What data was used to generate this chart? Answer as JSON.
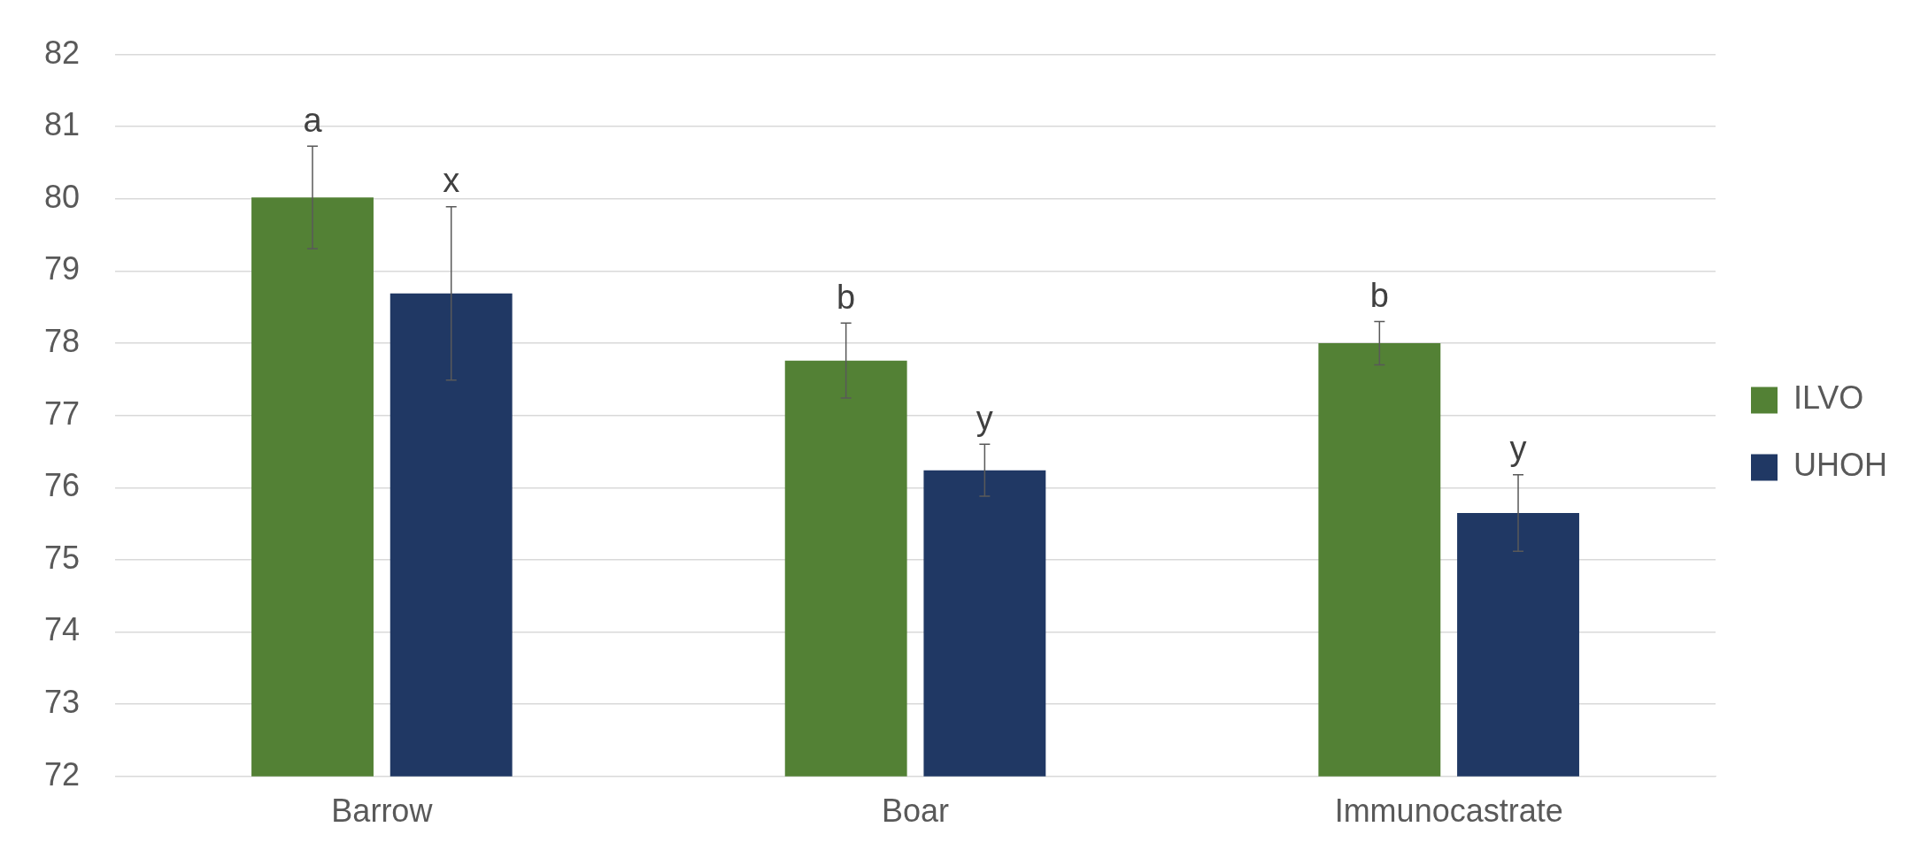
{
  "chart_data": {
    "type": "bar",
    "categories": [
      "Barrow",
      "Boar",
      "Immunocastrate"
    ],
    "series": [
      {
        "name": "ILVO",
        "color": "#538135",
        "values": [
          80.02,
          77.76,
          78.0
        ],
        "errors": [
          0.71,
          0.52,
          0.3
        ],
        "value_labels": [
          "a",
          "b",
          "b"
        ]
      },
      {
        "name": "UHOH",
        "color": "#203864",
        "values": [
          78.69,
          76.24,
          75.65
        ],
        "errors": [
          1.2,
          0.36,
          0.53
        ],
        "value_labels": [
          "x",
          "y",
          "y"
        ]
      }
    ],
    "ylim": [
      72,
      82
    ],
    "yticks": [
      72,
      73,
      74,
      75,
      76,
      77,
      78,
      79,
      80,
      81,
      82
    ],
    "grid": "y",
    "legend": "right"
  }
}
